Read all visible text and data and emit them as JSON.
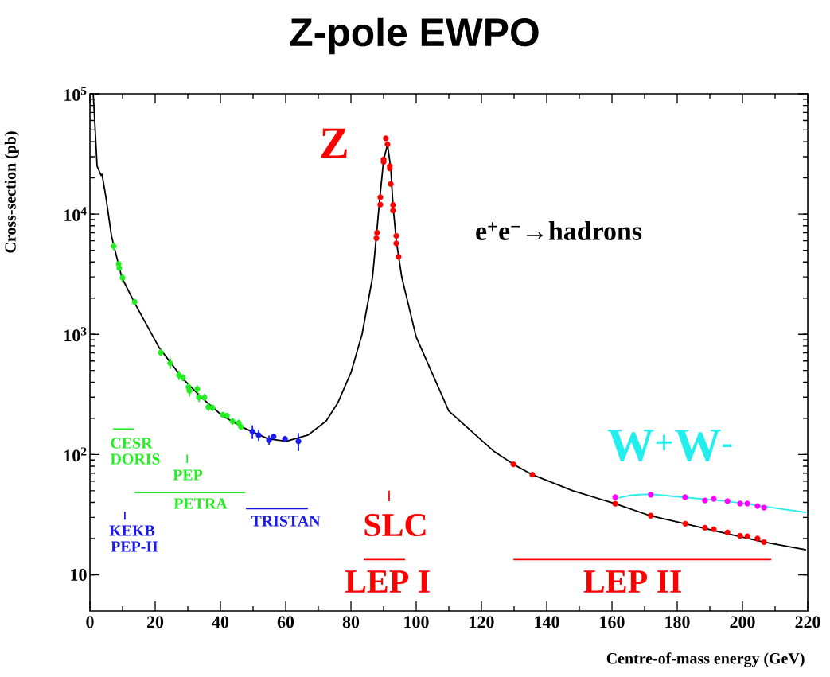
{
  "chart_data": {
    "type": "line",
    "title": "Z-pole EWPO",
    "xlabel": "Centre-of-mass energy (GeV)",
    "ylabel": "Cross-section (pb)",
    "annotations": [
      "Z",
      "e$^{+}$e$^{−}$→hadrons",
      "W$^{+}$W$^{-}$",
      "CESR",
      "DORIS",
      "PEP",
      "PETRA",
      "KEKB",
      "PEP-II",
      "TRISTAN",
      "SLC",
      "LEP I",
      "LEP II"
    ],
    "log": "y",
    "xlim": [
      0,
      220
    ],
    "ylim": [
      5,
      100000
    ],
    "xticks": [
      0,
      20,
      40,
      60,
      80,
      100,
      120,
      140,
      160,
      180,
      200,
      220
    ],
    "yticks": [
      {
        "value": 10,
        "label": "10"
      },
      {
        "value": 100,
        "label": "10$^{2}$"
      },
      {
        "value": 1000,
        "label": "10$^{3}$"
      },
      {
        "value": 10000,
        "label": "10$^{4}$"
      },
      {
        "value": 100000,
        "label": "10$^{5}$"
      }
    ],
    "series": [
      {
        "color": "#000000",
        "x": [
          1.0,
          1.2,
          2.2,
          3.4,
          3.7,
          4.9,
          6.6,
          7.3,
          9.8,
          13.9,
          21.2,
          28.5,
          34.1,
          40.7,
          47.3,
          54.6,
          60.2,
          66.8,
          72.4,
          76,
          80,
          83.4,
          86.6,
          87.8,
          88.8,
          90.0,
          91.2,
          92.2,
          92.9,
          93.9,
          95.6,
          100,
          110,
          123.7,
          129.8,
          135.6,
          148,
          161,
          171.7,
          182.4,
          195.1,
          206.6,
          219.5
        ],
        "values": [
          100000,
          81000,
          25000,
          21000,
          21500,
          13800,
          6600,
          5500,
          2950,
          1780,
          776,
          427,
          299,
          209,
          166,
          135,
          129,
          145,
          190,
          270,
          480,
          1000,
          2960,
          6600,
          13200,
          28000,
          38000,
          24000,
          11700,
          6000,
          2960,
          950,
          230,
          107,
          83,
          68,
          50,
          39,
          31,
          26.6,
          22,
          18.7,
          16.1
        ]
      },
      {
        "type": "scatter",
        "marker": "circle",
        "color": "#22ee22",
        "x": [
          7.3,
          8.8,
          9.0,
          10.0,
          13.7,
          21.7,
          24.6,
          27.3,
          28.5,
          30.2,
          30.5,
          32.9,
          33.4,
          35.1,
          36.3,
          37.6,
          40.7,
          42.0,
          43.7,
          45.6,
          46.3
        ],
        "values": [
          5400,
          3850,
          3550,
          2950,
          1860,
          705,
          575,
          457,
          436,
          363,
          339,
          350,
          299,
          299,
          248,
          245,
          214,
          210,
          189,
          183,
          170
        ],
        "errors": [
          400,
          150,
          120,
          250,
          120,
          50,
          60,
          40,
          30,
          35,
          35,
          25,
          25,
          20,
          18,
          15,
          12,
          12,
          12,
          12,
          10
        ]
      },
      {
        "type": "scatter",
        "marker": "circle",
        "color": "#1a1aee",
        "x": [
          49.8,
          51.7,
          54.9,
          56.3,
          59.8,
          63.9
        ],
        "values": [
          155,
          145,
          132,
          141,
          135,
          129
        ],
        "errors": [
          20,
          15,
          12,
          6,
          7,
          22
        ]
      },
      {
        "type": "scatter",
        "marker": "circle",
        "color": "#ff0000",
        "x": [
          87.8,
          88.0,
          89.0,
          89.0,
          90.0,
          90.0,
          90.7,
          91.2,
          91.9,
          91.9,
          92.2,
          92.9,
          92.9,
          93.9,
          93.9,
          94.6,
          129.8,
          135.6,
          161.0,
          171.9,
          182.5,
          188.5,
          191.2,
          195.4,
          199.3,
          201.5,
          204.6,
          206.6
        ],
        "values": [
          6300,
          7000,
          12000,
          13800,
          27200,
          28500,
          42600,
          38000,
          24000,
          25100,
          17800,
          10700,
          11900,
          5700,
          6600,
          4420,
          83,
          68,
          39,
          31,
          26.6,
          24.6,
          23.9,
          22.5,
          21.1,
          20.9,
          20.0,
          18.7
        ]
      },
      {
        "type": "scatter",
        "marker": "circle",
        "color": "#ff00ff",
        "x": [
          161.0,
          171.9,
          182.4,
          188.5,
          191.2,
          195.4,
          199.3,
          201.5,
          204.6,
          206.6
        ],
        "values": [
          44.2,
          46.3,
          44.2,
          41.5,
          42.8,
          41,
          39.1,
          39.1,
          37.3,
          36.2
        ]
      },
      {
        "type": "line",
        "color": "#22eeee",
        "x": [
          162,
          165.9,
          171.7,
          182.4,
          195.1,
          206.6,
          219.5
        ],
        "values": [
          43.5,
          46,
          46.8,
          44,
          41,
          37,
          33
        ]
      },
      {
        "type": "line",
        "color": "#22ee22",
        "x": [
          7.1,
          13.4
        ],
        "values": [
          163,
          163
        ]
      },
      {
        "type": "line",
        "color": "#22ee22",
        "x": [
          29.8,
          29.8
        ],
        "values": [
          85,
          100
        ]
      },
      {
        "type": "line",
        "color": "#22ee22",
        "x": [
          13.7,
          47.6
        ],
        "values": [
          48.3,
          48.3
        ]
      },
      {
        "type": "line",
        "color": "#1a1aee",
        "x": [
          10.7,
          10.7
        ],
        "values": [
          28.7,
          33.4
        ]
      },
      {
        "type": "line",
        "color": "#1a1aee",
        "x": [
          47.8,
          66.8
        ],
        "values": [
          35.5,
          35.5
        ]
      },
      {
        "type": "line",
        "color": "#ff0000",
        "x": [
          91.7,
          91.7
        ],
        "values": [
          41,
          50
        ]
      },
      {
        "type": "line",
        "color": "#ff0000",
        "x": [
          83.9,
          96.6
        ],
        "values": [
          13.4,
          13.4
        ]
      },
      {
        "type": "line",
        "color": "#ff0000",
        "x": [
          129.8,
          208.8
        ],
        "values": [
          13.4,
          13.4
        ]
      }
    ]
  }
}
